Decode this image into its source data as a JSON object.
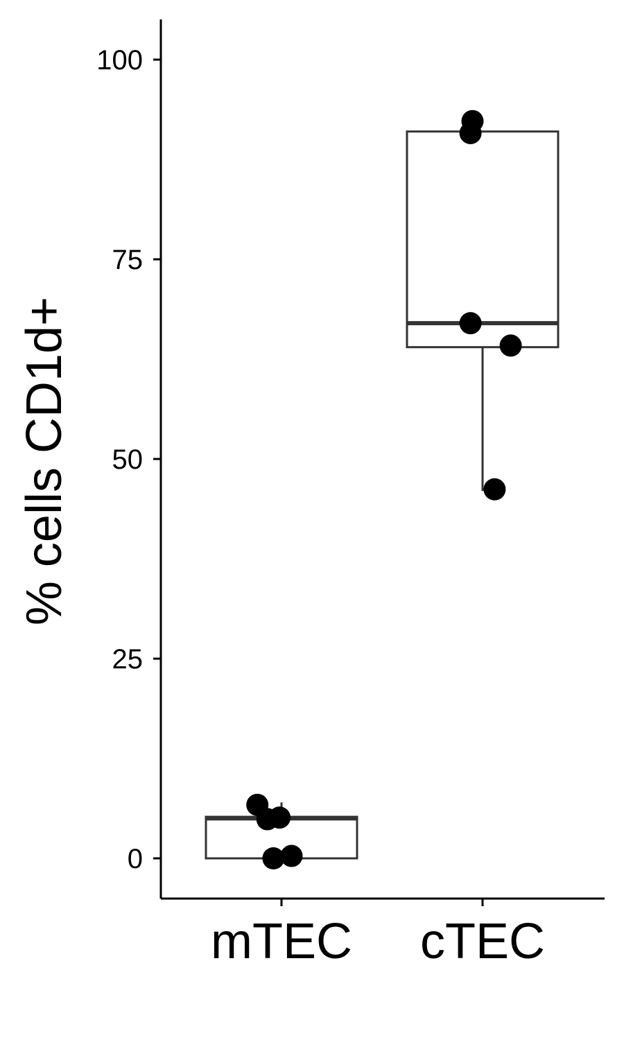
{
  "chart_data": {
    "type": "box",
    "title": "",
    "xlabel": "",
    "ylabel": "% cells CD1d+",
    "ylim": [
      -5,
      105
    ],
    "yticks": [
      0,
      25,
      50,
      75,
      100
    ],
    "grid": false,
    "categories": [
      "mTEC",
      "cTEC"
    ],
    "boxes": [
      {
        "category": "mTEC",
        "q1": 0,
        "median": 5,
        "q3": 5.2,
        "whisker_low": 0,
        "whisker_high": 7
      },
      {
        "category": "cTEC",
        "q1": 64,
        "median": 67,
        "q3": 91,
        "whisker_low": 46,
        "whisker_high": 91
      }
    ],
    "points": [
      {
        "category": "mTEC",
        "y": 6.7,
        "jitter": -0.12
      },
      {
        "category": "mTEC",
        "y": 4.9,
        "jitter": -0.07
      },
      {
        "category": "mTEC",
        "y": 5.1,
        "jitter": -0.01
      },
      {
        "category": "mTEC",
        "y": 0.0,
        "jitter": -0.04
      },
      {
        "category": "mTEC",
        "y": 0.3,
        "jitter": 0.05
      },
      {
        "category": "cTEC",
        "y": 92.3,
        "jitter": -0.05
      },
      {
        "category": "cTEC",
        "y": 90.8,
        "jitter": -0.06
      },
      {
        "category": "cTEC",
        "y": 67.0,
        "jitter": -0.06
      },
      {
        "category": "cTEC",
        "y": 64.2,
        "jitter": 0.14
      },
      {
        "category": "cTEC",
        "y": 46.2,
        "jitter": 0.06
      }
    ],
    "colors": {
      "box_stroke": "#333333",
      "point": "#000000",
      "axis": "#000000"
    }
  }
}
